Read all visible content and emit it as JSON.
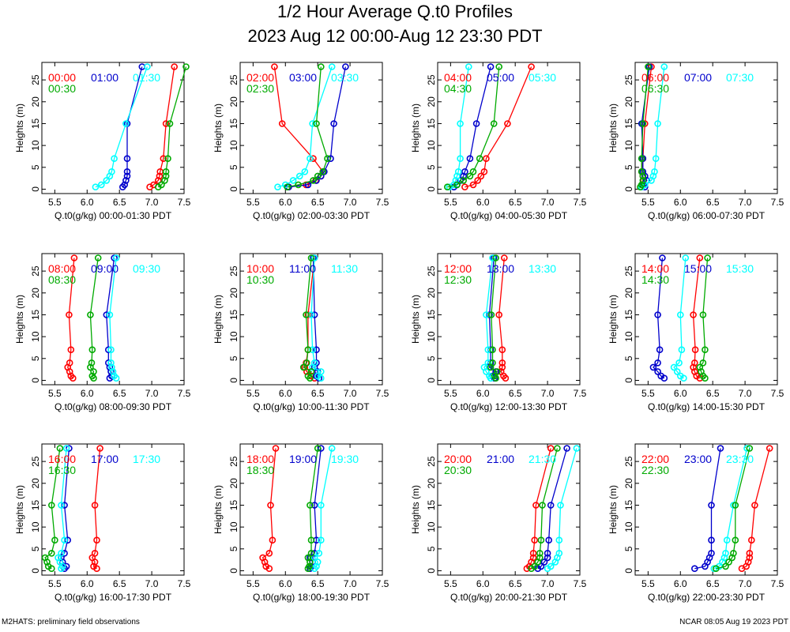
{
  "title": "1/2 Hour Average Q.t0 Profiles",
  "subtitle": "2023 Aug 12 00:00-Aug 12 23:30 PDT",
  "footer_left": "M2HATS: preliminary field observations",
  "footer_right": "NCAR 08:05 Aug 19 2023 PDT",
  "colors": {
    "series1": "#ff0000",
    "series2": "#0000cc",
    "series3": "#00ffff",
    "series4": "#00aa00"
  },
  "chart_data": [
    {
      "type": "line",
      "xlabel": "Q.t0(g/kg) 00:00-01:30 PDT",
      "ylabel": "Heights (m)",
      "xlim": [
        5.3,
        7.5
      ],
      "ylim": [
        -1,
        29
      ],
      "xticks": [
        "5.5",
        "6.0",
        "6.5",
        "7.0",
        "7.5"
      ],
      "yticks": [
        "0",
        "5",
        "10",
        "15",
        "20",
        "25"
      ],
      "heights": [
        0.5,
        1,
        2,
        3,
        4,
        7,
        15,
        28
      ],
      "series": [
        {
          "name": "00:00",
          "values": [
            6.97,
            7.03,
            7.1,
            7.12,
            7.13,
            7.18,
            7.22,
            7.35
          ]
        },
        {
          "name": "01:00",
          "values": [
            6.55,
            6.58,
            6.6,
            6.62,
            6.62,
            6.62,
            6.62,
            6.85
          ]
        },
        {
          "name": "01:30",
          "values": [
            6.13,
            6.22,
            6.3,
            6.35,
            6.38,
            6.42,
            6.6,
            6.93
          ]
        },
        {
          "name": "00:30",
          "values": [
            7.1,
            7.15,
            7.2,
            7.22,
            7.22,
            7.25,
            7.28,
            7.53
          ]
        }
      ]
    },
    {
      "type": "line",
      "xlabel": "Q.t0(g/kg) 02:00-03:30 PDT",
      "ylabel": "Heights (m)",
      "xlim": [
        5.3,
        7.5
      ],
      "ylim": [
        -1,
        29
      ],
      "xticks": [
        "5.5",
        "6.0",
        "6.5",
        "7.0",
        "7.5"
      ],
      "yticks": [
        "0",
        "5",
        "10",
        "15",
        "20",
        "25"
      ],
      "heights": [
        0.5,
        1,
        2,
        3,
        4,
        7,
        15,
        28
      ],
      "series": [
        {
          "name": "02:00",
          "values": [
            6.05,
            6.32,
            6.47,
            6.55,
            6.58,
            6.43,
            5.95,
            5.83
          ]
        },
        {
          "name": "03:00",
          "values": [
            6.05,
            6.35,
            6.48,
            6.55,
            6.6,
            6.7,
            6.75,
            6.93
          ]
        },
        {
          "name": "03:30",
          "values": [
            5.88,
            6.0,
            6.12,
            6.22,
            6.3,
            6.38,
            6.42,
            6.72
          ]
        },
        {
          "name": "02:30",
          "values": [
            6.03,
            6.2,
            6.43,
            6.5,
            6.58,
            6.65,
            6.48,
            6.55
          ]
        }
      ]
    },
    {
      "type": "line",
      "xlabel": "Q.t0(g/kg) 04:00-05:30 PDT",
      "ylabel": "Heights (m)",
      "xlim": [
        5.3,
        7.5
      ],
      "ylim": [
        -1,
        29
      ],
      "xticks": [
        "5.5",
        "6.0",
        "6.5",
        "7.0",
        "7.5"
      ],
      "yticks": [
        "0",
        "5",
        "10",
        "15",
        "20",
        "25"
      ],
      "heights": [
        0.5,
        1,
        2,
        3,
        4,
        7,
        15,
        28
      ],
      "series": [
        {
          "name": "04:00",
          "values": [
            5.72,
            5.85,
            5.92,
            5.97,
            6.02,
            6.05,
            6.38,
            6.75
          ]
        },
        {
          "name": "05:00",
          "values": [
            5.55,
            5.6,
            5.65,
            5.7,
            5.72,
            5.8,
            5.9,
            6.12
          ]
        },
        {
          "name": "05:30",
          "values": [
            5.48,
            5.55,
            5.58,
            5.6,
            5.62,
            5.65,
            5.65,
            5.78
          ]
        },
        {
          "name": "04:30",
          "values": [
            5.45,
            5.6,
            5.7,
            5.8,
            5.85,
            5.95,
            6.17,
            6.25
          ]
        }
      ]
    },
    {
      "type": "line",
      "xlabel": "Q.t0(g/kg) 06:00-07:30 PDT",
      "ylabel": "Heights (m)",
      "xlim": [
        5.3,
        7.5
      ],
      "ylim": [
        -1,
        29
      ],
      "xticks": [
        "5.5",
        "6.0",
        "6.5",
        "7.0",
        "7.5"
      ],
      "yticks": [
        "0",
        "5",
        "10",
        "15",
        "20",
        "25"
      ],
      "heights": [
        0.5,
        1,
        2,
        3,
        4,
        7,
        15,
        28
      ],
      "series": [
        {
          "name": "06:00",
          "values": [
            5.4,
            5.42,
            5.43,
            5.42,
            5.4,
            5.42,
            5.45,
            5.55
          ]
        },
        {
          "name": "07:00",
          "values": [
            5.45,
            5.42,
            5.48,
            5.45,
            5.42,
            5.42,
            5.4,
            5.52
          ]
        },
        {
          "name": "07:30",
          "values": [
            5.4,
            5.45,
            5.55,
            5.58,
            5.6,
            5.62,
            5.65,
            5.75
          ]
        },
        {
          "name": "06:30",
          "values": [
            5.38,
            5.4,
            5.42,
            5.42,
            5.4,
            5.4,
            5.42,
            5.5
          ]
        }
      ]
    },
    {
      "type": "line",
      "xlabel": "Q.t0(g/kg) 08:00-09:30 PDT",
      "ylabel": "Heights (m)",
      "xlim": [
        5.3,
        7.5
      ],
      "ylim": [
        -1,
        29
      ],
      "xticks": [
        "5.5",
        "6.0",
        "6.5",
        "7.0",
        "7.5"
      ],
      "yticks": [
        "0",
        "5",
        "10",
        "15",
        "20",
        "25"
      ],
      "heights": [
        0.5,
        1,
        2,
        3,
        4,
        7,
        15,
        28
      ],
      "series": [
        {
          "name": "08:00",
          "values": [
            5.78,
            5.75,
            5.73,
            5.7,
            5.73,
            5.75,
            5.72,
            5.8
          ]
        },
        {
          "name": "09:00",
          "values": [
            6.35,
            6.38,
            6.37,
            6.35,
            6.33,
            6.33,
            6.3,
            6.42
          ]
        },
        {
          "name": "09:30",
          "values": [
            6.45,
            6.42,
            6.4,
            6.38,
            6.37,
            6.37,
            6.35,
            6.45
          ]
        },
        {
          "name": "08:30",
          "values": [
            6.1,
            6.08,
            6.1,
            6.05,
            6.07,
            6.08,
            6.05,
            6.17
          ]
        }
      ]
    },
    {
      "type": "line",
      "xlabel": "Q.t0(g/kg) 10:00-11:30 PDT",
      "ylabel": "Heights (m)",
      "xlim": [
        5.3,
        7.5
      ],
      "ylim": [
        -1,
        29
      ],
      "xticks": [
        "5.5",
        "6.0",
        "6.5",
        "7.0",
        "7.5"
      ],
      "yticks": [
        "0",
        "5",
        "10",
        "15",
        "20",
        "25"
      ],
      "heights": [
        0.5,
        1,
        2,
        3,
        4,
        7,
        15,
        28
      ],
      "series": [
        {
          "name": "10:00",
          "values": [
            6.45,
            6.4,
            6.33,
            6.3,
            6.32,
            6.35,
            6.35,
            6.45
          ]
        },
        {
          "name": "11:00",
          "values": [
            6.52,
            6.48,
            6.5,
            6.45,
            6.48,
            6.48,
            6.45,
            6.43
          ]
        },
        {
          "name": "11:30",
          "values": [
            6.55,
            6.5,
            6.55,
            6.42,
            6.45,
            6.42,
            6.4,
            6.45
          ]
        },
        {
          "name": "10:30",
          "values": [
            6.38,
            6.35,
            6.4,
            6.28,
            6.33,
            6.35,
            6.32,
            6.4
          ]
        }
      ]
    },
    {
      "type": "line",
      "xlabel": "Q.t0(g/kg) 12:00-13:30 PDT",
      "ylabel": "Heights (m)",
      "xlim": [
        5.3,
        7.5
      ],
      "ylim": [
        -1,
        29
      ],
      "xticks": [
        "5.5",
        "6.0",
        "6.5",
        "7.0",
        "7.5"
      ],
      "yticks": [
        "0",
        "5",
        "10",
        "15",
        "20",
        "25"
      ],
      "heights": [
        0.5,
        1,
        2,
        3,
        4,
        7,
        15,
        28
      ],
      "series": [
        {
          "name": "12:00",
          "values": [
            6.35,
            6.32,
            6.28,
            6.3,
            6.3,
            6.3,
            6.25,
            6.33
          ]
        },
        {
          "name": "13:00",
          "values": [
            6.18,
            6.15,
            6.2,
            6.1,
            6.12,
            6.12,
            6.1,
            6.17
          ]
        },
        {
          "name": "13:30",
          "values": [
            6.12,
            6.1,
            6.05,
            6.02,
            6.08,
            6.08,
            6.05,
            6.15
          ]
        },
        {
          "name": "12:30",
          "values": [
            6.2,
            6.18,
            6.22,
            6.12,
            6.15,
            6.15,
            6.13,
            6.2
          ]
        }
      ]
    },
    {
      "type": "line",
      "xlabel": "Q.t0(g/kg) 14:00-15:30 PDT",
      "ylabel": "Heights (m)",
      "xlim": [
        5.3,
        7.5
      ],
      "ylim": [
        -1,
        29
      ],
      "xticks": [
        "5.5",
        "6.0",
        "6.5",
        "7.0",
        "7.5"
      ],
      "yticks": [
        "0",
        "5",
        "10",
        "15",
        "20",
        "25"
      ],
      "heights": [
        0.5,
        1,
        2,
        3,
        4,
        7,
        15,
        28
      ],
      "series": [
        {
          "name": "14:00",
          "values": [
            6.3,
            6.25,
            6.22,
            6.2,
            6.22,
            6.23,
            6.2,
            6.3
          ]
        },
        {
          "name": "15:00",
          "values": [
            5.75,
            5.7,
            5.65,
            5.58,
            5.65,
            5.68,
            5.65,
            5.72
          ]
        },
        {
          "name": "15:30",
          "values": [
            6.05,
            6.0,
            5.95,
            5.9,
            5.98,
            6.02,
            6.0,
            6.08
          ]
        },
        {
          "name": "14:30",
          "values": [
            6.38,
            6.35,
            6.32,
            6.3,
            6.35,
            6.38,
            6.35,
            6.42
          ]
        }
      ]
    },
    {
      "type": "line",
      "xlabel": "Q.t0(g/kg) 16:00-17:30 PDT",
      "ylabel": "Heights (m)",
      "xlim": [
        5.3,
        7.5
      ],
      "ylim": [
        -1,
        29
      ],
      "xticks": [
        "5.5",
        "6.0",
        "6.5",
        "7.0",
        "7.5"
      ],
      "yticks": [
        "0",
        "5",
        "10",
        "15",
        "20",
        "25"
      ],
      "heights": [
        0.5,
        1,
        2,
        3,
        4,
        7,
        15,
        28
      ],
      "series": [
        {
          "name": "16:00",
          "values": [
            6.15,
            6.1,
            6.12,
            6.08,
            6.12,
            6.15,
            6.12,
            6.2
          ]
        },
        {
          "name": "17:00",
          "values": [
            5.65,
            5.68,
            5.62,
            5.6,
            5.65,
            5.7,
            5.65,
            5.72
          ]
        },
        {
          "name": "17:30",
          "values": [
            5.6,
            5.62,
            5.58,
            5.55,
            5.6,
            5.65,
            5.6,
            5.68
          ]
        },
        {
          "name": "16:30",
          "values": [
            5.45,
            5.4,
            5.38,
            5.35,
            5.45,
            5.5,
            5.45,
            5.58
          ]
        }
      ]
    },
    {
      "type": "line",
      "xlabel": "Q.t0(g/kg) 18:00-19:30 PDT",
      "ylabel": "Heights (m)",
      "xlim": [
        5.3,
        7.5
      ],
      "ylim": [
        -1,
        29
      ],
      "xticks": [
        "5.5",
        "6.0",
        "6.5",
        "7.0",
        "7.5"
      ],
      "yticks": [
        "0",
        "5",
        "10",
        "15",
        "20",
        "25"
      ],
      "heights": [
        0.5,
        1,
        2,
        3,
        4,
        7,
        15,
        28
      ],
      "series": [
        {
          "name": "18:00",
          "values": [
            5.75,
            5.7,
            5.68,
            5.65,
            5.75,
            5.8,
            5.77,
            5.85
          ]
        },
        {
          "name": "19:00",
          "values": [
            6.38,
            6.4,
            6.42,
            6.38,
            6.45,
            6.48,
            6.45,
            6.55
          ]
        },
        {
          "name": "19:30",
          "values": [
            6.45,
            6.48,
            6.5,
            6.45,
            6.52,
            6.55,
            6.55,
            6.72
          ]
        },
        {
          "name": "18:30",
          "values": [
            6.35,
            6.37,
            6.38,
            6.35,
            6.4,
            6.4,
            6.38,
            6.5
          ]
        }
      ]
    },
    {
      "type": "line",
      "xlabel": "Q.t0(g/kg) 20:00-21:30 PDT",
      "ylabel": "Heights (m)",
      "xlim": [
        5.3,
        7.5
      ],
      "ylim": [
        -1,
        29
      ],
      "xticks": [
        "5.5",
        "6.0",
        "6.5",
        "7.0",
        "7.5"
      ],
      "yticks": [
        "0",
        "5",
        "10",
        "15",
        "20",
        "25"
      ],
      "heights": [
        0.5,
        1,
        2,
        3,
        4,
        7,
        15,
        28
      ],
      "series": [
        {
          "name": "20:00",
          "values": [
            6.68,
            6.72,
            6.75,
            6.78,
            6.78,
            6.8,
            6.82,
            7.05
          ]
        },
        {
          "name": "21:00",
          "values": [
            6.85,
            6.9,
            6.95,
            7.0,
            7.0,
            7.02,
            7.05,
            7.3
          ]
        },
        {
          "name": "21:30",
          "values": [
            7.0,
            7.05,
            7.12,
            7.15,
            7.18,
            7.18,
            7.2,
            7.45
          ]
        },
        {
          "name": "20:30",
          "values": [
            6.75,
            6.8,
            6.85,
            6.88,
            6.88,
            6.9,
            6.92,
            7.15
          ]
        }
      ]
    },
    {
      "type": "line",
      "xlabel": "Q.t0(g/kg) 22:00-23:30 PDT",
      "ylabel": "Heights (m)",
      "xlim": [
        5.3,
        7.5
      ],
      "ylim": [
        -1,
        29
      ],
      "xticks": [
        "5.5",
        "6.0",
        "6.5",
        "7.0",
        "7.5"
      ],
      "yticks": [
        "0",
        "5",
        "10",
        "15",
        "20",
        "25"
      ],
      "heights": [
        0.5,
        1,
        2,
        3,
        4,
        7,
        15,
        28
      ],
      "series": [
        {
          "name": "22:00",
          "values": [
            6.95,
            7.02,
            7.05,
            7.07,
            7.07,
            7.1,
            7.15,
            7.38
          ]
        },
        {
          "name": "23:00",
          "values": [
            6.22,
            6.38,
            6.42,
            6.45,
            6.48,
            6.48,
            6.48,
            6.62
          ]
        },
        {
          "name": "23:30",
          "values": [
            6.52,
            6.6,
            6.65,
            6.68,
            6.7,
            6.72,
            6.82,
            7.03
          ]
        },
        {
          "name": "22:30",
          "values": [
            6.55,
            6.7,
            6.75,
            6.8,
            6.82,
            6.85,
            6.85,
            7.07
          ]
        }
      ]
    }
  ]
}
